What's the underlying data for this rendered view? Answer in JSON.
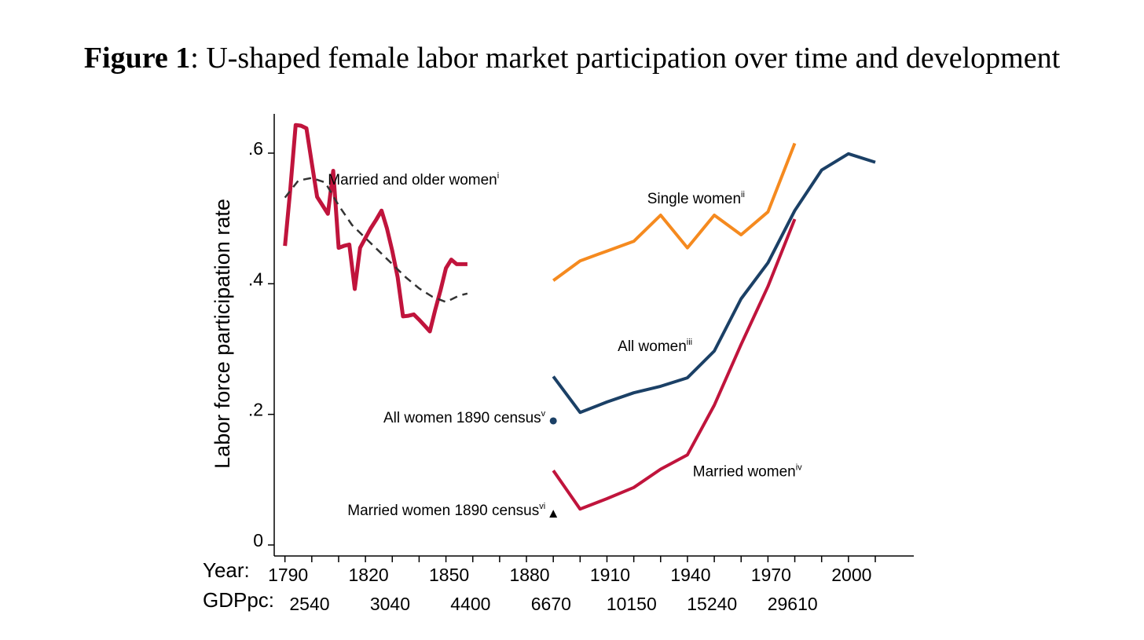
{
  "figure": {
    "label": "Figure 1",
    "title": ": U-shaped female labor market participation over time and development"
  },
  "chart_data": {
    "type": "line",
    "ylabel": "Labor force participation rate",
    "xlabel": "",
    "ylim": [
      0,
      0.66
    ],
    "xlim": [
      1786,
      2030
    ],
    "yticks": [
      {
        "value": 0,
        "label": "0"
      },
      {
        "value": 0.2,
        "label": ".2"
      },
      {
        "value": 0.4,
        "label": ".4"
      },
      {
        "value": 0.6,
        "label": ".6"
      }
    ],
    "xticks": [
      1790,
      1800,
      1810,
      1820,
      1830,
      1840,
      1850,
      1860,
      1870,
      1880,
      1890,
      1900,
      1910,
      1920,
      1930,
      1940,
      1950,
      1960,
      1970,
      1980,
      1990,
      2000,
      2010
    ],
    "year_row_label": "Year:",
    "year_labels": [
      {
        "year": 1790,
        "label": "1790"
      },
      {
        "year": 1820,
        "label": "1820"
      },
      {
        "year": 1850,
        "label": "1850"
      },
      {
        "year": 1880,
        "label": "1880"
      },
      {
        "year": 1910,
        "label": "1910"
      },
      {
        "year": 1940,
        "label": "1940"
      },
      {
        "year": 1970,
        "label": "1970"
      },
      {
        "year": 2000,
        "label": "2000"
      }
    ],
    "gdp_row_label": "GDPpc:",
    "gdp_labels": [
      {
        "year": 1798,
        "label": "2540"
      },
      {
        "year": 1828,
        "label": "3040"
      },
      {
        "year": 1858,
        "label": "4400"
      },
      {
        "year": 1888,
        "label": "6670"
      },
      {
        "year": 1918,
        "label": "10150"
      },
      {
        "year": 1948,
        "label": "15240"
      },
      {
        "year": 1978,
        "label": "29610"
      }
    ],
    "series": [
      {
        "key": "married_older",
        "name": "Married and older women",
        "superscript": "i",
        "color": "#c0143c",
        "width": 5,
        "label_pos": {
          "year": 1806,
          "value": 0.552
        },
        "x": [
          1790,
          1792,
          1794,
          1796,
          1798,
          1800,
          1802,
          1804,
          1806,
          1808,
          1810,
          1812,
          1814,
          1816,
          1818,
          1820,
          1822,
          1824,
          1826,
          1828,
          1830,
          1832,
          1834,
          1836,
          1838,
          1840,
          1842,
          1844,
          1846,
          1848,
          1850,
          1852,
          1854,
          1856,
          1858
        ],
        "values": [
          0.458,
          0.545,
          0.643,
          0.642,
          0.638,
          0.585,
          0.533,
          0.52,
          0.507,
          0.573,
          0.455,
          0.458,
          0.46,
          0.392,
          0.455,
          0.47,
          0.485,
          0.498,
          0.512,
          0.485,
          0.45,
          0.41,
          0.35,
          0.351,
          0.353,
          0.345,
          0.336,
          0.327,
          0.36,
          0.39,
          0.424,
          0.437,
          0.43,
          0.43,
          0.43
        ]
      },
      {
        "key": "trend",
        "name": "",
        "dashed": true,
        "color": "#333333",
        "width": 2.5,
        "x": [
          1790,
          1795,
          1800,
          1805,
          1810,
          1815,
          1820,
          1825,
          1830,
          1835,
          1840,
          1845,
          1850,
          1855,
          1858
        ],
        "values": [
          0.532,
          0.558,
          0.562,
          0.555,
          0.52,
          0.49,
          0.47,
          0.45,
          0.43,
          0.41,
          0.393,
          0.38,
          0.372,
          0.382,
          0.385
        ]
      },
      {
        "key": "single",
        "name": "Single women",
        "superscript": "ii",
        "color": "#f58a1f",
        "width": 4,
        "label_pos": {
          "year": 1925,
          "value": 0.523
        },
        "x": [
          1890,
          1900,
          1910,
          1920,
          1930,
          1940,
          1950,
          1960,
          1970,
          1980
        ],
        "values": [
          0.405,
          0.435,
          0.45,
          0.465,
          0.505,
          0.455,
          0.505,
          0.475,
          0.51,
          0.615
        ]
      },
      {
        "key": "all",
        "name": "All women",
        "superscript": "iii",
        "color": "#1b4066",
        "width": 4,
        "label_pos": {
          "year": 1914,
          "value": 0.297
        },
        "x": [
          1890,
          1900,
          1910,
          1920,
          1930,
          1940,
          1950,
          1960,
          1970,
          1980,
          1990,
          2000,
          2010
        ],
        "values": [
          0.258,
          0.203,
          0.219,
          0.233,
          0.243,
          0.256,
          0.297,
          0.377,
          0.432,
          0.512,
          0.574,
          0.599,
          0.586
        ]
      },
      {
        "key": "married",
        "name": "Married women",
        "superscript": "iv",
        "color": "#c0143c",
        "width": 4,
        "label_pos": {
          "year": 1942,
          "value": 0.105
        },
        "x": [
          1890,
          1900,
          1910,
          1920,
          1930,
          1940,
          1950,
          1960,
          1970,
          1980
        ],
        "values": [
          0.114,
          0.055,
          0.071,
          0.088,
          0.116,
          0.138,
          0.214,
          0.307,
          0.396,
          0.499
        ]
      }
    ],
    "points": [
      {
        "key": "all1890",
        "name": "All women 1890 census",
        "superscript": "v",
        "shape": "circle",
        "color": "#1b4066",
        "x": 1890,
        "value": 0.19
      },
      {
        "key": "married1890",
        "name": "Married women 1890 census",
        "superscript": "vi",
        "shape": "triangle",
        "color": "#000000",
        "x": 1890,
        "value": 0.048
      }
    ]
  }
}
